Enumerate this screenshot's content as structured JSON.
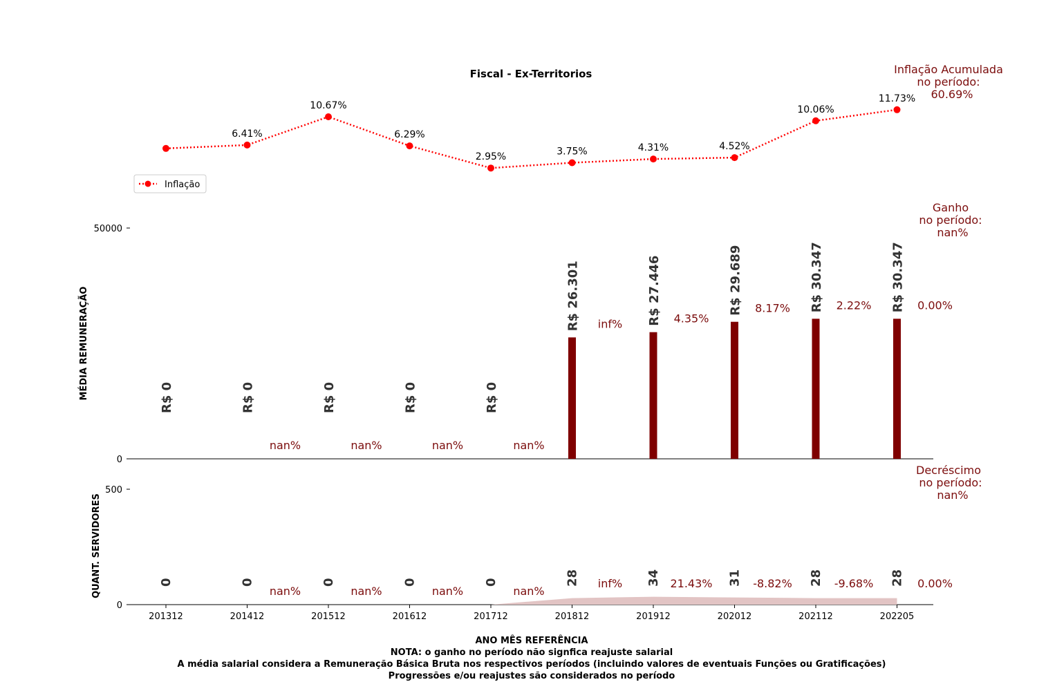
{
  "chart_data": {
    "type": "bar",
    "title": "Fiscal - Ex-Territorios",
    "categories": [
      "201312",
      "201412",
      "201512",
      "201612",
      "201712",
      "201812",
      "201912",
      "202012",
      "202112",
      "202205"
    ],
    "inflation": {
      "legend": "Inflação",
      "values": [
        null,
        6.41,
        10.67,
        6.29,
        2.95,
        3.75,
        4.31,
        4.52,
        10.06,
        11.73
      ],
      "labels": [
        "",
        "6.41%",
        "10.67%",
        "6.29%",
        "2.95%",
        "3.75%",
        "4.31%",
        "4.52%",
        "10.06%",
        "11.73%"
      ],
      "first_point_estimate": 5.9,
      "color": "#ff0000",
      "accumulated": [
        "Inflação Acumulada",
        "no período:",
        "60.69%"
      ]
    },
    "salary": {
      "ylabel": "MÉDIA REMUNERAÇÃO",
      "ylim": [
        0,
        50000
      ],
      "yticks": [
        "0",
        "50000"
      ],
      "values": [
        0,
        0,
        0,
        0,
        0,
        26301,
        27446,
        29689,
        30347,
        30347
      ],
      "labels": [
        "R$ 0",
        "R$ 0",
        "R$ 0",
        "R$ 0",
        "R$ 0",
        "R$ 26.301",
        "R$ 27.446",
        "R$ 29.689",
        "R$ 30.347",
        "R$ 30.347"
      ],
      "changes": [
        "nan%",
        "nan%",
        "nan%",
        "nan%",
        "inf%",
        "4.35%",
        "8.17%",
        "2.22%",
        "0.00%"
      ],
      "color": "#7f0000",
      "gain": [
        "Ganho",
        "no período:",
        "nan%"
      ]
    },
    "staff": {
      "ylabel": "QUANT. SERVIDORES",
      "ylim": [
        0,
        500
      ],
      "yticks": [
        "0",
        "500"
      ],
      "values": [
        0,
        0,
        0,
        0,
        0,
        28,
        34,
        31,
        28,
        28
      ],
      "labels": [
        "0",
        "0",
        "0",
        "0",
        "0",
        "28",
        "34",
        "31",
        "28",
        "28"
      ],
      "changes": [
        "nan%",
        "nan%",
        "nan%",
        "nan%",
        "inf%",
        "21.43%",
        "-8.82%",
        "-9.68%",
        "0.00%"
      ],
      "area_color": "#e2c4c4",
      "decrease": [
        "Decréscimo",
        "no período:",
        "nan%"
      ]
    },
    "xlabel": "ANO MÊS REFERÊNCIA",
    "notes": [
      "NOTA: o ganho no período não signfica reajuste salarial",
      "A média salarial considera a Remuneração Básica Bruta nos respectivos períodos (incluindo valores de eventuais Funções ou Gratificações)",
      "Progressões e/ou reajustes são considerados no período"
    ]
  }
}
